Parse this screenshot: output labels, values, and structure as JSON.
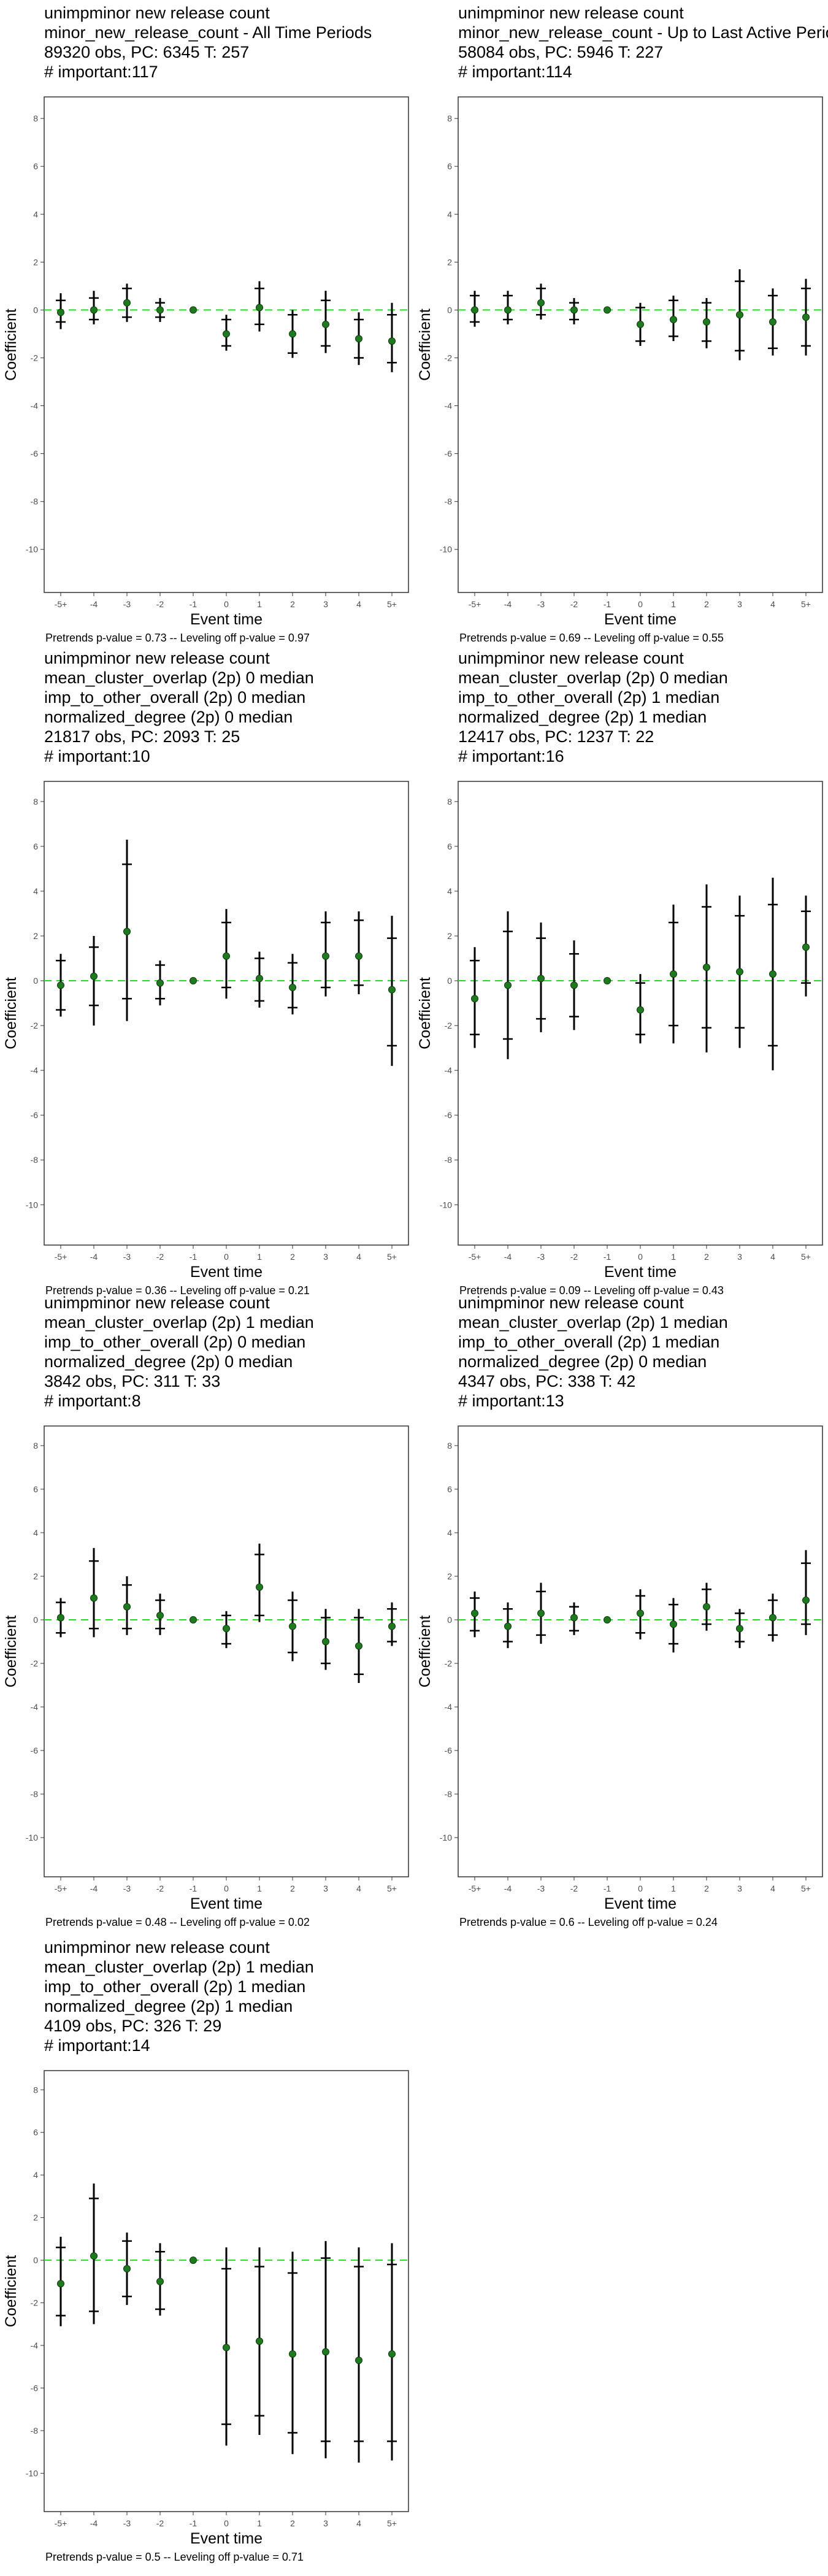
{
  "chart_data": [
    {
      "type": "errorbar",
      "title": [
        "unimpminor new release count",
        "minor_new_release_count - All Time Periods",
        "89320 obs, PC: 6345 T: 257",
        "# important:117"
      ],
      "xlabel": "Event time",
      "ylabel": "Coefficient",
      "footer": "Pretrends p-value = 0.73 -- Leveling off p-value = 0.97",
      "categories": [
        "-5+",
        "-4",
        "-3",
        "-2",
        "-1",
        "0",
        "1",
        "2",
        "3",
        "4",
        "5+"
      ],
      "values": [
        -0.1,
        0.0,
        0.3,
        0.0,
        0,
        -1.0,
        0.1,
        -1.0,
        -0.6,
        -1.2,
        -1.3
      ],
      "ci_low": [
        -0.8,
        -0.6,
        -0.5,
        -0.5,
        null,
        -1.7,
        -0.9,
        -2.0,
        -1.8,
        -2.3,
        -2.6
      ],
      "ci_high": [
        0.7,
        0.8,
        1.1,
        0.5,
        null,
        -0.2,
        1.2,
        0.0,
        0.8,
        -0.1,
        0.3
      ],
      "ci_inner_low": [
        -0.5,
        -0.4,
        -0.3,
        -0.3,
        null,
        -1.5,
        -0.6,
        -1.8,
        -1.5,
        -2.0,
        -2.2
      ],
      "ci_inner_high": [
        0.4,
        0.5,
        0.9,
        0.3,
        null,
        -0.4,
        0.9,
        -0.2,
        0.4,
        -0.4,
        -0.2
      ],
      "ylim": [
        -11.8,
        8.9
      ],
      "yticks": [
        -10,
        -8,
        -6,
        -4,
        -2,
        0,
        2,
        4,
        6,
        8
      ],
      "hline": 0,
      "point_color": "#1f7a1f",
      "hline_color": "#22dd22"
    },
    {
      "type": "errorbar",
      "title": [
        "unimpminor new release count",
        "minor_new_release_count - Up to Last Active Period",
        "58084 obs, PC: 5946 T: 227",
        "# important:114"
      ],
      "xlabel": "Event time",
      "ylabel": "Coefficient",
      "footer": "Pretrends p-value = 0.69 -- Leveling off p-value = 0.55",
      "categories": [
        "-5+",
        "-4",
        "-3",
        "-2",
        "-1",
        "0",
        "1",
        "2",
        "3",
        "4",
        "5+"
      ],
      "values": [
        0.0,
        0.0,
        0.3,
        0.0,
        0,
        -0.6,
        -0.4,
        -0.5,
        -0.2,
        -0.5,
        -0.3
      ],
      "ci_low": [
        -0.7,
        -0.6,
        -0.4,
        -0.6,
        null,
        -1.5,
        -1.3,
        -1.6,
        -2.1,
        -1.9,
        -1.9
      ],
      "ci_high": [
        0.8,
        0.8,
        1.1,
        0.5,
        null,
        0.3,
        0.6,
        0.5,
        1.7,
        0.9,
        1.3
      ],
      "ci_inner_low": [
        -0.5,
        -0.4,
        -0.2,
        -0.4,
        null,
        -1.3,
        -1.1,
        -1.3,
        -1.7,
        -1.6,
        -1.5
      ],
      "ci_inner_high": [
        0.6,
        0.6,
        0.9,
        0.3,
        null,
        0.1,
        0.4,
        0.3,
        1.2,
        0.6,
        0.9
      ],
      "ylim": [
        -11.8,
        8.9
      ],
      "yticks": [
        -10,
        -8,
        -6,
        -4,
        -2,
        0,
        2,
        4,
        6,
        8
      ],
      "hline": 0,
      "point_color": "#1f7a1f",
      "hline_color": "#22dd22"
    },
    {
      "type": "errorbar",
      "title": [
        "unimpminor new release count",
        "mean_cluster_overlap (2p) 0 median",
        "imp_to_other_overall (2p) 0 median",
        "normalized_degree (2p) 0 median",
        "21817 obs, PC: 2093 T: 25",
        "# important:10"
      ],
      "xlabel": "Event time",
      "ylabel": "Coefficient",
      "footer": "Pretrends p-value = 0.36 -- Leveling off p-value = 0.21",
      "categories": [
        "-5+",
        "-4",
        "-3",
        "-2",
        "-1",
        "0",
        "1",
        "2",
        "3",
        "4",
        "5+"
      ],
      "values": [
        -0.2,
        0.2,
        2.2,
        -0.1,
        0,
        1.1,
        0.1,
        -0.3,
        1.1,
        1.1,
        -0.4
      ],
      "ci_low": [
        -1.6,
        -2.0,
        -1.8,
        -1.1,
        null,
        -0.8,
        -1.2,
        -1.5,
        -0.7,
        -0.6,
        -3.8
      ],
      "ci_high": [
        1.2,
        2.0,
        6.3,
        0.9,
        null,
        3.2,
        1.3,
        1.2,
        3.1,
        3.1,
        2.9
      ],
      "ci_inner_low": [
        -1.3,
        -1.1,
        -0.8,
        -0.8,
        null,
        -0.3,
        -0.9,
        -1.2,
        -0.3,
        -0.2,
        -2.9
      ],
      "ci_inner_high": [
        0.9,
        1.5,
        5.2,
        0.7,
        null,
        2.6,
        1.0,
        0.8,
        2.6,
        2.7,
        1.9
      ],
      "ylim": [
        -11.8,
        8.9
      ],
      "yticks": [
        -10,
        -8,
        -6,
        -4,
        -2,
        0,
        2,
        4,
        6,
        8
      ],
      "hline": 0,
      "point_color": "#1f7a1f",
      "hline_color": "#22dd22"
    },
    {
      "type": "errorbar",
      "title": [
        "unimpminor new release count",
        "mean_cluster_overlap (2p) 0 median",
        "imp_to_other_overall (2p) 1 median",
        "normalized_degree (2p) 1 median",
        "12417 obs, PC: 1237 T: 22",
        "# important:16"
      ],
      "xlabel": "Event time",
      "ylabel": "Coefficient",
      "footer": "Pretrends p-value = 0.09 -- Leveling off p-value = 0.43",
      "categories": [
        "-5+",
        "-4",
        "-3",
        "-2",
        "-1",
        "0",
        "1",
        "2",
        "3",
        "4",
        "5+"
      ],
      "values": [
        -0.8,
        -0.2,
        0.1,
        -0.2,
        0,
        -1.3,
        0.3,
        0.6,
        0.4,
        0.3,
        1.5
      ],
      "ci_low": [
        -3.0,
        -3.5,
        -2.3,
        -2.2,
        null,
        -2.8,
        -2.8,
        -3.2,
        -3.0,
        -4.0,
        -0.7
      ],
      "ci_high": [
        1.5,
        3.1,
        2.6,
        1.8,
        null,
        0.3,
        3.4,
        4.3,
        3.8,
        4.6,
        3.8
      ],
      "ci_inner_low": [
        -2.4,
        -2.6,
        -1.7,
        -1.6,
        null,
        -2.4,
        -2.0,
        -2.1,
        -2.1,
        -2.9,
        -0.1
      ],
      "ci_inner_high": [
        0.9,
        2.2,
        1.9,
        1.2,
        null,
        -0.1,
        2.6,
        3.3,
        2.9,
        3.4,
        3.1
      ],
      "ylim": [
        -11.8,
        8.9
      ],
      "yticks": [
        -10,
        -8,
        -6,
        -4,
        -2,
        0,
        2,
        4,
        6,
        8
      ],
      "hline": 0,
      "point_color": "#1f7a1f",
      "hline_color": "#22dd22"
    },
    {
      "type": "errorbar",
      "title": [
        "unimpminor new release count",
        "mean_cluster_overlap (2p) 1 median",
        "imp_to_other_overall (2p) 0 median",
        "normalized_degree (2p) 0 median",
        "3842 obs, PC: 311 T: 33",
        "# important:8"
      ],
      "xlabel": "Event time",
      "ylabel": "Coefficient",
      "footer": "Pretrends p-value = 0.48 -- Leveling off p-value = 0.02",
      "categories": [
        "-5+",
        "-4",
        "-3",
        "-2",
        "-1",
        "0",
        "1",
        "2",
        "3",
        "4",
        "5+"
      ],
      "values": [
        0.1,
        1.0,
        0.6,
        0.2,
        0,
        -0.4,
        1.5,
        -0.3,
        -1.0,
        -1.2,
        -0.3
      ],
      "ci_low": [
        -0.8,
        -0.8,
        -0.7,
        -0.7,
        null,
        -1.3,
        -0.1,
        -1.9,
        -2.3,
        -2.9,
        -1.2
      ],
      "ci_high": [
        1.0,
        3.3,
        2.0,
        1.2,
        null,
        0.4,
        3.5,
        1.3,
        0.5,
        0.5,
        0.8
      ],
      "ci_inner_low": [
        -0.6,
        -0.4,
        -0.4,
        -0.4,
        null,
        -1.1,
        0.2,
        -1.5,
        -2.0,
        -2.5,
        -1.0
      ],
      "ci_inner_high": [
        0.8,
        2.7,
        1.6,
        0.9,
        null,
        0.2,
        3.0,
        0.9,
        0.1,
        0.1,
        0.5
      ],
      "ylim": [
        -11.8,
        8.9
      ],
      "yticks": [
        -10,
        -8,
        -6,
        -4,
        -2,
        0,
        2,
        4,
        6,
        8
      ],
      "hline": 0,
      "point_color": "#1f7a1f",
      "hline_color": "#22dd22"
    },
    {
      "type": "errorbar",
      "title": [
        "unimpminor new release count",
        "mean_cluster_overlap (2p) 1 median",
        "imp_to_other_overall (2p) 1 median",
        "normalized_degree (2p) 0 median",
        "4347 obs, PC: 338 T: 42",
        "# important:13"
      ],
      "xlabel": "Event time",
      "ylabel": "Coefficient",
      "footer": "Pretrends p-value = 0.6 -- Leveling off p-value = 0.24",
      "categories": [
        "-5+",
        "-4",
        "-3",
        "-2",
        "-1",
        "0",
        "1",
        "2",
        "3",
        "4",
        "5+"
      ],
      "values": [
        0.3,
        -0.3,
        0.3,
        0.1,
        0,
        0.3,
        -0.2,
        0.6,
        -0.4,
        0.1,
        0.9
      ],
      "ci_low": [
        -0.8,
        -1.3,
        -1.1,
        -0.7,
        null,
        -0.9,
        -1.5,
        -0.5,
        -1.3,
        -1.0,
        -0.7
      ],
      "ci_high": [
        1.3,
        0.8,
        1.7,
        0.8,
        null,
        1.4,
        1.0,
        1.7,
        0.5,
        1.2,
        3.2
      ],
      "ci_inner_low": [
        -0.5,
        -1.0,
        -0.7,
        -0.5,
        null,
        -0.6,
        -1.1,
        -0.2,
        -1.0,
        -0.7,
        -0.2
      ],
      "ci_inner_high": [
        1.0,
        0.5,
        1.3,
        0.6,
        null,
        1.1,
        0.7,
        1.4,
        0.3,
        0.9,
        2.6
      ],
      "ylim": [
        -11.8,
        8.9
      ],
      "yticks": [
        -10,
        -8,
        -6,
        -4,
        -2,
        0,
        2,
        4,
        6,
        8
      ],
      "hline": 0,
      "point_color": "#1f7a1f",
      "hline_color": "#22dd22"
    },
    {
      "type": "errorbar",
      "title": [
        "unimpminor new release count",
        "mean_cluster_overlap (2p) 1 median",
        "imp_to_other_overall (2p) 1 median",
        "normalized_degree (2p) 1 median",
        "4109 obs, PC: 326 T: 29",
        "# important:14"
      ],
      "xlabel": "Event time",
      "ylabel": "Coefficient",
      "footer": "Pretrends p-value = 0.5 -- Leveling off p-value = 0.71",
      "categories": [
        "-5+",
        "-4",
        "-3",
        "-2",
        "-1",
        "0",
        "1",
        "2",
        "3",
        "4",
        "5+"
      ],
      "values": [
        -1.1,
        0.2,
        -0.4,
        -1.0,
        0,
        -4.1,
        -3.8,
        -4.4,
        -4.3,
        -4.7,
        -4.4
      ],
      "ci_low": [
        -3.1,
        -3.0,
        -2.1,
        -2.6,
        null,
        -8.7,
        -8.2,
        -9.1,
        -9.3,
        -9.5,
        -9.4
      ],
      "ci_high": [
        1.1,
        3.6,
        1.3,
        0.8,
        null,
        0.6,
        0.6,
        0.4,
        0.9,
        0.6,
        0.8
      ],
      "ci_inner_low": [
        -2.6,
        -2.4,
        -1.7,
        -2.3,
        null,
        -7.7,
        -7.3,
        -8.1,
        -8.5,
        -8.5,
        -8.5
      ],
      "ci_inner_high": [
        0.6,
        2.9,
        0.9,
        0.4,
        null,
        -0.4,
        -0.3,
        -0.6,
        0.1,
        -0.3,
        -0.2
      ],
      "ylim": [
        -11.8,
        8.9
      ],
      "yticks": [
        -10,
        -8,
        -6,
        -4,
        -2,
        0,
        2,
        4,
        6,
        8
      ],
      "hline": 0,
      "point_color": "#1f7a1f",
      "hline_color": "#22dd22"
    }
  ]
}
